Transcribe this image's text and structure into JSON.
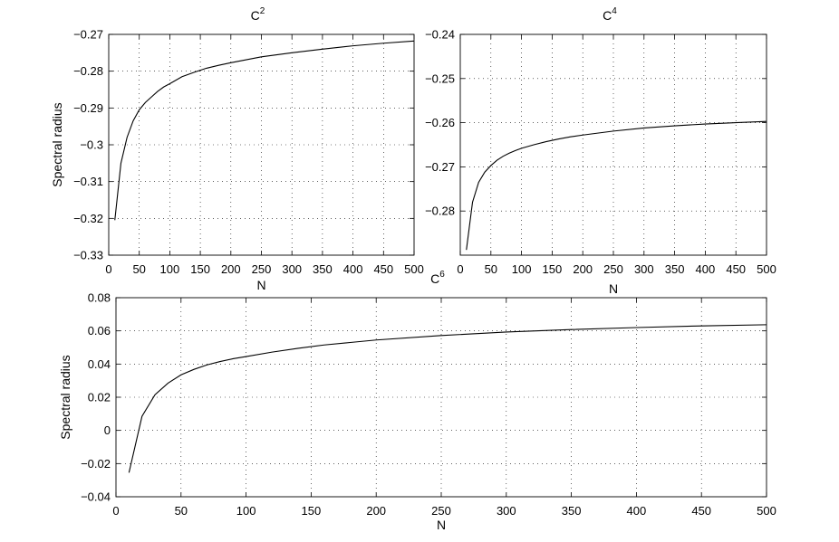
{
  "chart_data": [
    {
      "type": "line",
      "title": "C",
      "title_sup": "2",
      "xlabel": "N",
      "ylabel": "Spectral radius",
      "xlim": [
        0,
        500
      ],
      "ylim": [
        -0.33,
        -0.27
      ],
      "xticks": [
        0,
        50,
        100,
        150,
        200,
        250,
        300,
        350,
        400,
        450,
        500
      ],
      "xtick_labels": [
        "0",
        "50",
        "100",
        "150",
        "200",
        "250",
        "300",
        "350",
        "400",
        "450",
        "500"
      ],
      "yticks": [
        -0.33,
        -0.32,
        -0.31,
        -0.3,
        -0.29,
        -0.28,
        -0.27
      ],
      "ytick_labels": [
        "−0.33",
        "−0.32",
        "−0.31",
        "−0.3",
        "−0.29",
        "−0.28",
        "−0.27"
      ],
      "grid": true,
      "x": [
        10,
        20,
        30,
        40,
        50,
        60,
        70,
        80,
        90,
        100,
        120,
        140,
        160,
        180,
        200,
        250,
        300,
        350,
        400,
        450,
        500
      ],
      "y": [
        -0.3205,
        -0.305,
        -0.298,
        -0.2935,
        -0.2905,
        -0.2885,
        -0.287,
        -0.2855,
        -0.2843,
        -0.2834,
        -0.2815,
        -0.2803,
        -0.2792,
        -0.2784,
        -0.2777,
        -0.2761,
        -0.275,
        -0.274,
        -0.2731,
        -0.2724,
        -0.2718
      ]
    },
    {
      "type": "line",
      "title": "C",
      "title_sup": "4",
      "xlabel": "N",
      "ylabel": "",
      "xlim": [
        0,
        500
      ],
      "ylim": [
        -0.29,
        -0.24
      ],
      "xticks": [
        0,
        50,
        100,
        150,
        200,
        250,
        300,
        350,
        400,
        450,
        500
      ],
      "xtick_labels": [
        "0",
        "50",
        "100",
        "150",
        "200",
        "250",
        "300",
        "350",
        "400",
        "450",
        "500"
      ],
      "yticks": [
        -0.28,
        -0.27,
        -0.26,
        -0.25,
        -0.24
      ],
      "ytick_labels": [
        "−0.28",
        "−0.27",
        "−0.26",
        "−0.25",
        "−0.24"
      ],
      "grid": true,
      "x": [
        10,
        20,
        30,
        40,
        50,
        60,
        70,
        80,
        90,
        100,
        120,
        140,
        160,
        180,
        200,
        250,
        300,
        350,
        400,
        450,
        500
      ],
      "y": [
        -0.2888,
        -0.278,
        -0.2735,
        -0.2712,
        -0.2697,
        -0.2685,
        -0.2676,
        -0.2669,
        -0.2663,
        -0.2658,
        -0.265,
        -0.2643,
        -0.2637,
        -0.2632,
        -0.2628,
        -0.2619,
        -0.2612,
        -0.2607,
        -0.2603,
        -0.26,
        -0.2597
      ]
    },
    {
      "type": "line",
      "title": "C",
      "title_sup": "6",
      "xlabel": "N",
      "ylabel": "Spectral radius",
      "xlim": [
        0,
        500
      ],
      "ylim": [
        -0.04,
        0.08
      ],
      "xticks": [
        0,
        50,
        100,
        150,
        200,
        250,
        300,
        350,
        400,
        450,
        500
      ],
      "xtick_labels": [
        "0",
        "50",
        "100",
        "150",
        "200",
        "250",
        "300",
        "350",
        "400",
        "450",
        "500"
      ],
      "yticks": [
        -0.04,
        -0.02,
        0,
        0.02,
        0.04,
        0.06,
        0.08
      ],
      "ytick_labels": [
        "−0.04",
        "−0.02",
        "0",
        "0.02",
        "0.04",
        "0.06",
        "0.08"
      ],
      "grid": true,
      "x": [
        10,
        20,
        30,
        40,
        50,
        60,
        70,
        80,
        90,
        100,
        120,
        140,
        160,
        180,
        200,
        250,
        300,
        350,
        400,
        450,
        500
      ],
      "y": [
        -0.0255,
        0.0085,
        0.0215,
        0.0285,
        0.0335,
        0.0368,
        0.0395,
        0.0415,
        0.0432,
        0.0445,
        0.0472,
        0.0495,
        0.0515,
        0.053,
        0.0545,
        0.0572,
        0.0593,
        0.0608,
        0.062,
        0.063,
        0.0637
      ]
    }
  ]
}
